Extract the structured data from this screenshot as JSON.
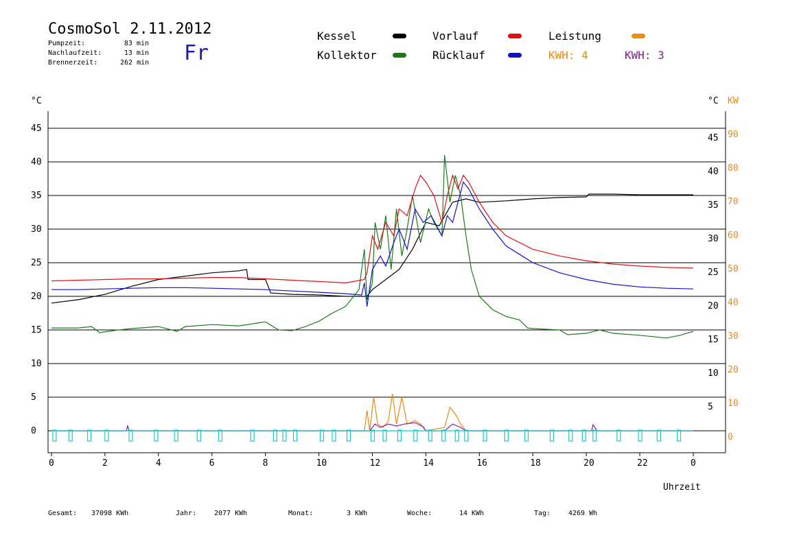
{
  "header": {
    "title": "CosmoSol 2.11.2012",
    "stats": [
      {
        "label": "Pumpzeit:",
        "value": "83 min"
      },
      {
        "label": "Nachlaufzeit:",
        "value": "13 min"
      },
      {
        "label": "Brennerzeit:",
        "value": "262 min"
      }
    ],
    "day": "Fr"
  },
  "legend": [
    {
      "label": "Kessel",
      "color": "#000000"
    },
    {
      "label": "Kollektor",
      "color": "#1a7a1a"
    },
    {
      "label": "Vorlauf",
      "color": "#dd1111"
    },
    {
      "label": "Rücklauf",
      "color": "#1111cc"
    },
    {
      "label": "Leistung",
      "color": "#f08a10"
    }
  ],
  "kwh": [
    {
      "label": "KWH: 4",
      "color": "#e88a10"
    },
    {
      "label": "KWH: 3",
      "color": "#8a1a9a"
    }
  ],
  "footer": [
    {
      "label": "Gesamt:",
      "value": "37098 KWh"
    },
    {
      "label": "Jahr:",
      "value": "2077 KWh"
    },
    {
      "label": "Monat:",
      "value": "3 KWh"
    },
    {
      "label": "Woche:",
      "value": "14 KWh"
    },
    {
      "label": "Tag:",
      "value": "4269 Wh"
    }
  ],
  "chart_data": {
    "type": "line",
    "xlabel": "Uhrzeit",
    "ylabel_left": "°C",
    "ylabel_right": "°C",
    "ylabel_right2": "KW",
    "xlim": [
      0,
      24
    ],
    "ylim": [
      0,
      45
    ],
    "x_ticks": [
      "0",
      "2",
      "4",
      "6",
      "8",
      "10",
      "12",
      "14",
      "16",
      "18",
      "20",
      "22",
      "0"
    ],
    "y_ticks_left": [
      "0",
      "5",
      "10",
      "15",
      "20",
      "25",
      "30",
      "35",
      "40",
      "45"
    ],
    "y_ticks_right": [
      "",
      "5",
      "10",
      "15",
      "20",
      "25",
      "30",
      "35",
      "40",
      "45"
    ],
    "y_ticks_right_kw": [
      "0",
      "10",
      "20",
      "30",
      "40",
      "50",
      "60",
      "70",
      "80",
      "90"
    ],
    "grid": true,
    "series": [
      {
        "name": "Kessel",
        "color": "#000000",
        "points": [
          [
            0,
            19
          ],
          [
            1,
            19.5
          ],
          [
            2,
            20.3
          ],
          [
            3,
            21.5
          ],
          [
            4,
            22.5
          ],
          [
            5,
            23
          ],
          [
            6,
            23.5
          ],
          [
            7,
            23.8
          ],
          [
            7.3,
            24
          ],
          [
            7.35,
            22.5
          ],
          [
            8,
            22.5
          ],
          [
            8.2,
            20.5
          ],
          [
            9,
            20.3
          ],
          [
            10,
            20.2
          ],
          [
            11,
            20
          ],
          [
            11.8,
            20
          ],
          [
            12,
            21
          ],
          [
            12.5,
            22.5
          ],
          [
            13,
            24
          ],
          [
            13.5,
            27
          ],
          [
            14,
            31
          ],
          [
            14.5,
            30.5
          ],
          [
            15,
            34
          ],
          [
            15.5,
            34.5
          ],
          [
            16,
            34
          ],
          [
            17,
            34.2
          ],
          [
            18,
            34.5
          ],
          [
            19,
            34.7
          ],
          [
            20,
            34.8
          ],
          [
            20.1,
            35.2
          ],
          [
            21,
            35.2
          ],
          [
            22,
            35.1
          ],
          [
            23,
            35.1
          ],
          [
            24,
            35.1
          ]
        ]
      },
      {
        "name": "Kollektor",
        "color": "#1a7a1a",
        "points": [
          [
            0,
            15.3
          ],
          [
            1,
            15.3
          ],
          [
            1.5,
            15.5
          ],
          [
            1.8,
            14.6
          ],
          [
            2.5,
            15
          ],
          [
            3,
            15.2
          ],
          [
            4,
            15.5
          ],
          [
            4.7,
            14.8
          ],
          [
            5,
            15.5
          ],
          [
            6,
            15.8
          ],
          [
            7,
            15.6
          ],
          [
            8,
            16.2
          ],
          [
            8.5,
            15
          ],
          [
            9,
            14.9
          ],
          [
            9.5,
            15.5
          ],
          [
            10,
            16.3
          ],
          [
            10.5,
            17.5
          ],
          [
            11,
            18.5
          ],
          [
            11.3,
            20
          ],
          [
            11.5,
            21
          ],
          [
            11.7,
            27
          ],
          [
            11.8,
            19.5
          ],
          [
            12,
            22
          ],
          [
            12.1,
            31
          ],
          [
            12.3,
            27
          ],
          [
            12.5,
            32
          ],
          [
            12.7,
            24
          ],
          [
            12.9,
            33
          ],
          [
            13.1,
            26
          ],
          [
            13.3,
            30
          ],
          [
            13.5,
            35
          ],
          [
            13.8,
            28
          ],
          [
            14.1,
            33
          ],
          [
            14.3,
            31
          ],
          [
            14.6,
            29
          ],
          [
            14.7,
            41
          ],
          [
            14.9,
            34
          ],
          [
            15.1,
            38
          ],
          [
            15.3,
            35
          ],
          [
            15.5,
            29
          ],
          [
            15.7,
            24
          ],
          [
            16,
            20
          ],
          [
            16.5,
            18
          ],
          [
            17,
            17
          ],
          [
            17.5,
            16.5
          ],
          [
            17.8,
            15.3
          ],
          [
            18,
            15.2
          ],
          [
            19,
            15
          ],
          [
            19.3,
            14.3
          ],
          [
            20,
            14.5
          ],
          [
            20.5,
            15
          ],
          [
            21,
            14.5
          ],
          [
            22,
            14.2
          ],
          [
            23,
            13.8
          ],
          [
            23.5,
            14.2
          ],
          [
            24,
            14.8
          ]
        ]
      },
      {
        "name": "Vorlauf",
        "color": "#dd1111",
        "points": [
          [
            0,
            22.3
          ],
          [
            1,
            22.4
          ],
          [
            2,
            22.5
          ],
          [
            3,
            22.6
          ],
          [
            4,
            22.6
          ],
          [
            5,
            22.7
          ],
          [
            6,
            22.8
          ],
          [
            7,
            22.8
          ],
          [
            8,
            22.6
          ],
          [
            9,
            22.4
          ],
          [
            10,
            22.2
          ],
          [
            11,
            22
          ],
          [
            11.7,
            22.5
          ],
          [
            11.8,
            23.5
          ],
          [
            12,
            29
          ],
          [
            12.2,
            27
          ],
          [
            12.5,
            31
          ],
          [
            12.8,
            29
          ],
          [
            13,
            33
          ],
          [
            13.3,
            32
          ],
          [
            13.6,
            36
          ],
          [
            13.8,
            38
          ],
          [
            14,
            37
          ],
          [
            14.3,
            35
          ],
          [
            14.6,
            31
          ],
          [
            14.8,
            35
          ],
          [
            15,
            38
          ],
          [
            15.2,
            36
          ],
          [
            15.4,
            38
          ],
          [
            15.6,
            37
          ],
          [
            16,
            34
          ],
          [
            16.5,
            31
          ],
          [
            17,
            29
          ],
          [
            18,
            27
          ],
          [
            19,
            26
          ],
          [
            20,
            25.3
          ],
          [
            21,
            24.8
          ],
          [
            22,
            24.5
          ],
          [
            23,
            24.3
          ],
          [
            24,
            24.2
          ]
        ]
      },
      {
        "name": "Rücklauf",
        "color": "#1111cc",
        "points": [
          [
            0,
            21
          ],
          [
            1,
            21
          ],
          [
            2,
            21.1
          ],
          [
            3,
            21.2
          ],
          [
            4,
            21.3
          ],
          [
            5,
            21.3
          ],
          [
            6,
            21.2
          ],
          [
            7,
            21.1
          ],
          [
            8,
            21
          ],
          [
            9,
            20.8
          ],
          [
            10,
            20.6
          ],
          [
            11,
            20.4
          ],
          [
            11.6,
            20.2
          ],
          [
            11.7,
            22
          ],
          [
            11.8,
            18.5
          ],
          [
            12,
            24
          ],
          [
            12.3,
            26
          ],
          [
            12.5,
            24.5
          ],
          [
            12.8,
            28
          ],
          [
            13,
            30
          ],
          [
            13.3,
            27
          ],
          [
            13.6,
            33
          ],
          [
            13.9,
            31
          ],
          [
            14.2,
            32
          ],
          [
            14.6,
            29
          ],
          [
            14.8,
            32
          ],
          [
            15,
            31
          ],
          [
            15.2,
            34
          ],
          [
            15.4,
            37
          ],
          [
            15.6,
            36
          ],
          [
            16,
            33
          ],
          [
            16.5,
            30
          ],
          [
            17,
            27.5
          ],
          [
            18,
            25
          ],
          [
            19,
            23.5
          ],
          [
            20,
            22.5
          ],
          [
            21,
            21.8
          ],
          [
            22,
            21.4
          ],
          [
            23,
            21.2
          ],
          [
            24,
            21.1
          ]
        ]
      },
      {
        "name": "KWH: 4",
        "color": "#e88a10",
        "points": [
          [
            0,
            0
          ],
          [
            11.7,
            0
          ],
          [
            11.8,
            3
          ],
          [
            11.9,
            0
          ],
          [
            12.05,
            5
          ],
          [
            12.2,
            1
          ],
          [
            12.4,
            0.5
          ],
          [
            12.6,
            1.5
          ],
          [
            12.75,
            5.5
          ],
          [
            12.9,
            1
          ],
          [
            13.1,
            5
          ],
          [
            13.3,
            1
          ],
          [
            13.6,
            1.5
          ],
          [
            13.8,
            1
          ],
          [
            14,
            0
          ],
          [
            14.7,
            0.5
          ],
          [
            14.9,
            3.5
          ],
          [
            15.1,
            2.5
          ],
          [
            15.3,
            1
          ],
          [
            15.5,
            0
          ],
          [
            24,
            0
          ]
        ]
      },
      {
        "name": "KWH: 3",
        "color": "#8a1a9a",
        "points": [
          [
            0,
            0
          ],
          [
            2.8,
            0
          ],
          [
            2.85,
            0.8
          ],
          [
            2.9,
            0
          ],
          [
            11.9,
            0
          ],
          [
            12.1,
            1
          ],
          [
            12.3,
            0.5
          ],
          [
            12.6,
            1
          ],
          [
            12.9,
            0.7
          ],
          [
            13.2,
            1
          ],
          [
            13.6,
            1.2
          ],
          [
            13.9,
            0.6
          ],
          [
            14,
            0
          ],
          [
            14.7,
            0
          ],
          [
            15,
            1
          ],
          [
            15.3,
            0.5
          ],
          [
            15.5,
            0
          ],
          [
            20.2,
            0
          ],
          [
            20.25,
            0.9
          ],
          [
            20.4,
            0
          ],
          [
            24,
            0
          ]
        ]
      }
    ],
    "pump_markers": [
      0.1,
      0.7,
      1.4,
      2.05,
      2.95,
      3.9,
      4.65,
      5.5,
      6.3,
      7.5,
      8.35,
      8.7,
      9.1,
      10.1,
      10.55,
      11.1,
      12.0,
      12.45,
      13.0,
      13.6,
      14.15,
      14.65,
      15.15,
      15.5,
      16.2,
      17.0,
      17.75,
      18.7,
      19.4,
      19.9,
      20.3,
      21.2,
      22.0,
      22.7,
      23.45
    ]
  }
}
